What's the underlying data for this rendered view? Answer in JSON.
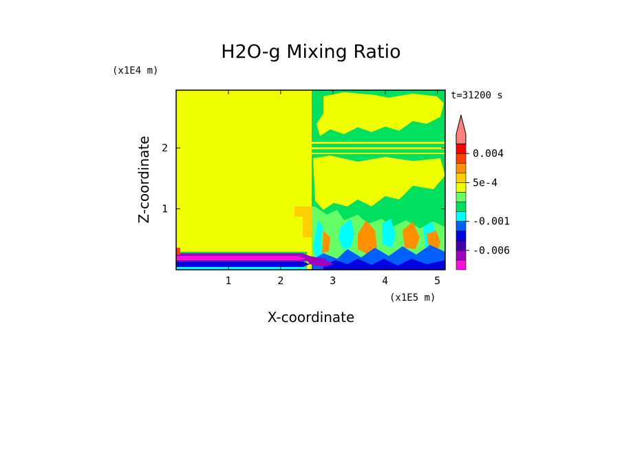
{
  "chart_data": {
    "type": "heatmap",
    "title": "H2O-g Mixing Ratio",
    "xlabel": "X-coordinate",
    "ylabel": "Z-coordinate",
    "x_unit": "(x1E5 m)",
    "y_unit": "(x1E4 m)",
    "time_label": "t=31200 s",
    "xlim": [
      0,
      5.15
    ],
    "ylim": [
      0,
      2.95
    ],
    "x_ticks": [
      1,
      2,
      3,
      4,
      5
    ],
    "y_ticks": [
      1,
      2
    ],
    "colorbar": {
      "colors": [
        "#ff10d8",
        "#a000c0",
        "#4000a8",
        "#0000e0",
        "#0060ff",
        "#00ffff",
        "#00e060",
        "#66ff66",
        "#f0ff00",
        "#ffd000",
        "#ff9000",
        "#ff4000",
        "#ff0000",
        "#ff8080"
      ],
      "labels": [
        "-0.006",
        "-0.001",
        "5e-4",
        "0.004"
      ],
      "label_levels": [
        2,
        5,
        9,
        12
      ]
    },
    "regions": [
      {
        "name": "dry-domain",
        "x": [
          0,
          2.58
        ],
        "z": [
          0.3,
          2.95
        ],
        "color": "#f0ff00"
      },
      {
        "name": "mixed-domain",
        "x": [
          2.58,
          5.15
        ],
        "z": [
          0,
          2.95
        ],
        "color": "#00e060"
      },
      {
        "name": "surface-anomaly-layer",
        "x": [
          0,
          2.45
        ],
        "z": [
          0,
          0.3
        ],
        "color": "#a000c0"
      }
    ]
  }
}
